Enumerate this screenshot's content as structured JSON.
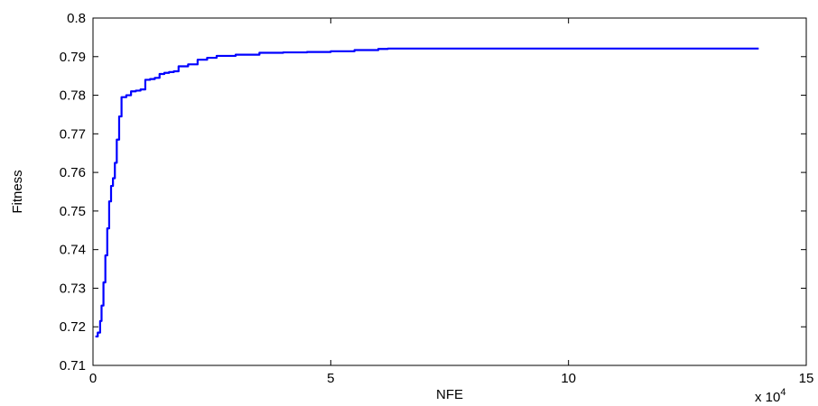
{
  "chart_data": {
    "type": "line",
    "title": "",
    "xlabel": "NFE",
    "ylabel": "Fitness",
    "x_multiplier_label": "x 10",
    "x_multiplier_exponent": "4",
    "xlim": [
      0,
      15
    ],
    "ylim": [
      0.71,
      0.8
    ],
    "xticks": [
      0,
      5,
      10,
      15
    ],
    "xtick_labels": [
      "0",
      "5",
      "10",
      "15"
    ],
    "yticks": [
      0.71,
      0.72,
      0.73,
      0.74,
      0.75,
      0.76,
      0.77,
      0.78,
      0.79,
      0.8
    ],
    "ytick_labels": [
      "0.71",
      "0.72",
      "0.73",
      "0.74",
      "0.75",
      "0.76",
      "0.77",
      "0.78",
      "0.79",
      "0.8"
    ],
    "grid": false,
    "legend": "none",
    "line_color": "#0000ff",
    "series": [
      {
        "x": [
          0.05,
          0.1,
          0.15,
          0.18,
          0.22,
          0.26,
          0.3,
          0.34,
          0.38,
          0.42,
          0.46,
          0.5,
          0.55,
          0.6,
          0.7,
          0.8,
          0.9,
          1.0,
          1.1,
          1.2,
          1.3,
          1.4,
          1.5,
          1.6,
          1.7,
          1.8,
          2.0,
          2.2,
          2.4,
          2.6,
          3.0,
          3.5,
          4.0,
          4.5,
          5.0,
          5.5,
          6.0,
          6.2,
          7.0,
          8.0,
          9.0,
          10.0,
          11.0,
          12.0,
          13.0,
          14.0
        ],
        "y": [
          0.7175,
          0.7185,
          0.7215,
          0.7255,
          0.7315,
          0.7385,
          0.7455,
          0.7525,
          0.7565,
          0.7585,
          0.7625,
          0.7685,
          0.7745,
          0.7795,
          0.78,
          0.781,
          0.7812,
          0.7815,
          0.784,
          0.7842,
          0.7845,
          0.7855,
          0.7858,
          0.786,
          0.7862,
          0.7875,
          0.788,
          0.7892,
          0.7897,
          0.7902,
          0.7905,
          0.791,
          0.7911,
          0.7912,
          0.7914,
          0.7917,
          0.792,
          0.7921,
          0.7921,
          0.7921,
          0.7921,
          0.7921,
          0.7921,
          0.7921,
          0.7921,
          0.7921
        ]
      }
    ]
  }
}
